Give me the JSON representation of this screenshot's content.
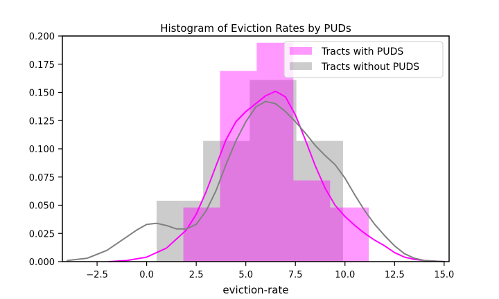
{
  "chart_data": {
    "type": "histogram",
    "title": "Histogram of Eviction Rates by PUDs",
    "xlabel": "eviction-rate",
    "ylabel": "",
    "xlim": [
      -4.25,
      15.25
    ],
    "ylim": [
      0,
      0.2
    ],
    "xticks": [
      -2.5,
      0.0,
      2.5,
      5.0,
      7.5,
      10.0,
      12.5,
      15.0
    ],
    "xtick_labels": [
      "−2.5",
      "0.0",
      "2.5",
      "5.0",
      "7.5",
      "10.0",
      "12.5",
      "15.0"
    ],
    "yticks": [
      0.0,
      0.025,
      0.05,
      0.075,
      0.1,
      0.125,
      0.15,
      0.175,
      0.2
    ],
    "ytick_labels": [
      "0.000",
      "0.025",
      "0.050",
      "0.075",
      "0.100",
      "0.125",
      "0.150",
      "0.175",
      "0.200"
    ],
    "grid": false,
    "legend_position": "top-right",
    "series": [
      {
        "name": "Tracts with PUDS",
        "color": "#ff00ff",
        "bar_opacity": 0.4,
        "bins": [
          {
            "x0": 1.85,
            "x1": 3.7,
            "density": 0.048
          },
          {
            "x0": 3.7,
            "x1": 5.55,
            "density": 0.169
          },
          {
            "x0": 5.55,
            "x1": 7.4,
            "density": 0.194
          },
          {
            "x0": 7.4,
            "x1": 9.25,
            "density": 0.072
          },
          {
            "x0": 9.25,
            "x1": 11.2,
            "density": 0.048
          }
        ],
        "kde": {
          "x": [
            -1.9,
            -1.0,
            0.0,
            1.0,
            2.0,
            2.5,
            3.0,
            3.5,
            4.0,
            4.5,
            5.0,
            5.5,
            6.0,
            6.5,
            7.0,
            7.5,
            8.0,
            8.5,
            9.0,
            9.5,
            10.0,
            10.5,
            11.0,
            11.5,
            12.0,
            12.5,
            13.0,
            13.5,
            14.0,
            15.0
          ],
          "y": [
            0.0,
            0.001,
            0.004,
            0.012,
            0.028,
            0.042,
            0.062,
            0.085,
            0.108,
            0.124,
            0.133,
            0.14,
            0.147,
            0.151,
            0.146,
            0.13,
            0.108,
            0.085,
            0.065,
            0.05,
            0.04,
            0.032,
            0.025,
            0.019,
            0.014,
            0.008,
            0.004,
            0.002,
            0.001,
            0.0
          ]
        }
      },
      {
        "name": "Tracts without PUDS",
        "color": "#808080",
        "bar_opacity": 0.4,
        "bins": [
          {
            "x0": 0.5,
            "x1": 2.85,
            "density": 0.054
          },
          {
            "x0": 2.85,
            "x1": 5.2,
            "density": 0.107
          },
          {
            "x0": 5.2,
            "x1": 7.55,
            "density": 0.161
          },
          {
            "x0": 7.55,
            "x1": 9.9,
            "density": 0.107
          }
        ],
        "kde": {
          "x": [
            -4.0,
            -3.0,
            -2.0,
            -1.0,
            -0.5,
            0.0,
            0.5,
            1.0,
            1.5,
            2.0,
            2.5,
            3.0,
            3.5,
            4.0,
            4.5,
            5.0,
            5.5,
            6.0,
            6.5,
            7.0,
            7.5,
            8.0,
            8.5,
            9.0,
            9.5,
            10.0,
            10.5,
            11.0,
            11.5,
            12.0,
            12.5,
            13.0,
            13.5,
            14.0,
            15.0
          ],
          "y": [
            0.001,
            0.003,
            0.01,
            0.022,
            0.028,
            0.033,
            0.034,
            0.032,
            0.029,
            0.029,
            0.033,
            0.045,
            0.063,
            0.086,
            0.107,
            0.124,
            0.137,
            0.142,
            0.14,
            0.133,
            0.124,
            0.114,
            0.103,
            0.094,
            0.086,
            0.074,
            0.059,
            0.045,
            0.033,
            0.023,
            0.014,
            0.007,
            0.003,
            0.001,
            0.0
          ]
        }
      }
    ]
  }
}
